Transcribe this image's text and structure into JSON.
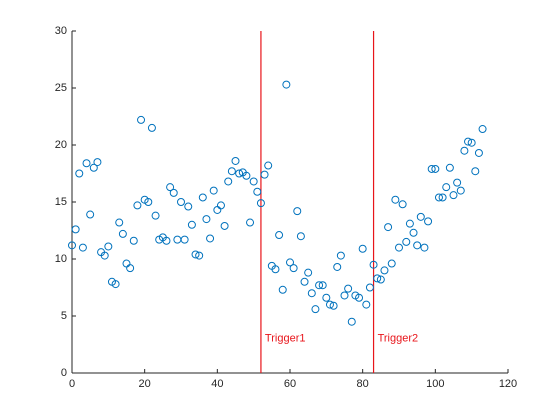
{
  "chart_data": {
    "type": "scatter",
    "color": "#0072bd",
    "x": [
      0,
      1,
      2,
      3,
      4,
      5,
      6,
      7,
      8,
      9,
      10,
      11,
      12,
      13,
      14,
      15,
      16,
      17,
      18,
      19,
      20,
      21,
      22,
      23,
      24,
      25,
      26,
      27,
      28,
      29,
      30,
      31,
      32,
      33,
      34,
      35,
      36,
      37,
      38,
      39,
      40,
      41,
      42,
      43,
      44,
      45,
      46,
      47,
      48,
      49,
      50,
      51,
      52,
      53,
      54,
      55,
      56,
      57,
      58,
      59,
      60,
      61,
      62,
      63,
      64,
      65,
      66,
      67,
      68,
      69,
      70,
      71,
      72,
      73,
      74,
      75,
      76,
      77,
      78,
      79,
      80,
      81,
      82,
      83,
      84,
      85,
      86,
      87,
      88,
      89,
      90,
      91,
      92,
      93,
      94,
      95,
      96,
      97,
      98,
      99,
      100,
      101,
      102,
      103,
      104,
      105,
      106,
      107,
      108,
      109,
      110,
      111,
      112,
      113
    ],
    "values": [
      11.2,
      12.6,
      17.5,
      11.0,
      18.4,
      13.9,
      18.0,
      18.5,
      10.6,
      10.3,
      11.1,
      8.0,
      7.8,
      13.2,
      12.2,
      9.6,
      9.2,
      11.6,
      14.7,
      22.2,
      15.2,
      15.0,
      21.5,
      13.8,
      11.7,
      11.9,
      11.6,
      16.3,
      15.8,
      11.7,
      15.0,
      11.7,
      14.6,
      13.0,
      10.4,
      10.3,
      15.4,
      13.5,
      11.8,
      16.0,
      14.3,
      14.7,
      12.9,
      16.8,
      17.7,
      18.6,
      17.5,
      17.6,
      17.3,
      13.2,
      16.8,
      15.9,
      14.9,
      17.4,
      18.2,
      9.4,
      9.1,
      12.1,
      7.3,
      25.3,
      9.7,
      9.2,
      14.2,
      12.0,
      8.0,
      8.8,
      7.0,
      5.6,
      7.7,
      7.7,
      6.6,
      6.0,
      5.9,
      9.3,
      10.3,
      6.8,
      7.4,
      4.5,
      6.8,
      6.6,
      10.9,
      6.0,
      7.5,
      9.5,
      8.3,
      8.2,
      9.0,
      12.8,
      9.6,
      15.2,
      11.0,
      14.8,
      11.5,
      13.1,
      12.3,
      11.2,
      13.7,
      11.0,
      13.3,
      17.9,
      17.9,
      15.4,
      15.4,
      16.3,
      18.0,
      15.6,
      16.7,
      16.0,
      19.5,
      20.3,
      20.2,
      17.7,
      19.3,
      21.4
    ],
    "xlim": [
      0,
      120
    ],
    "ylim": [
      0,
      30
    ],
    "xticks": [
      0,
      20,
      40,
      60,
      80,
      100,
      120
    ],
    "yticks": [
      0,
      5,
      10,
      15,
      20,
      25,
      30
    ],
    "annotations": [
      {
        "x": 52,
        "y": 3,
        "label": "Trigger1",
        "color": "#e8141a"
      },
      {
        "x": 83,
        "y": 3,
        "label": "Trigger2",
        "color": "#e8141a"
      }
    ]
  }
}
